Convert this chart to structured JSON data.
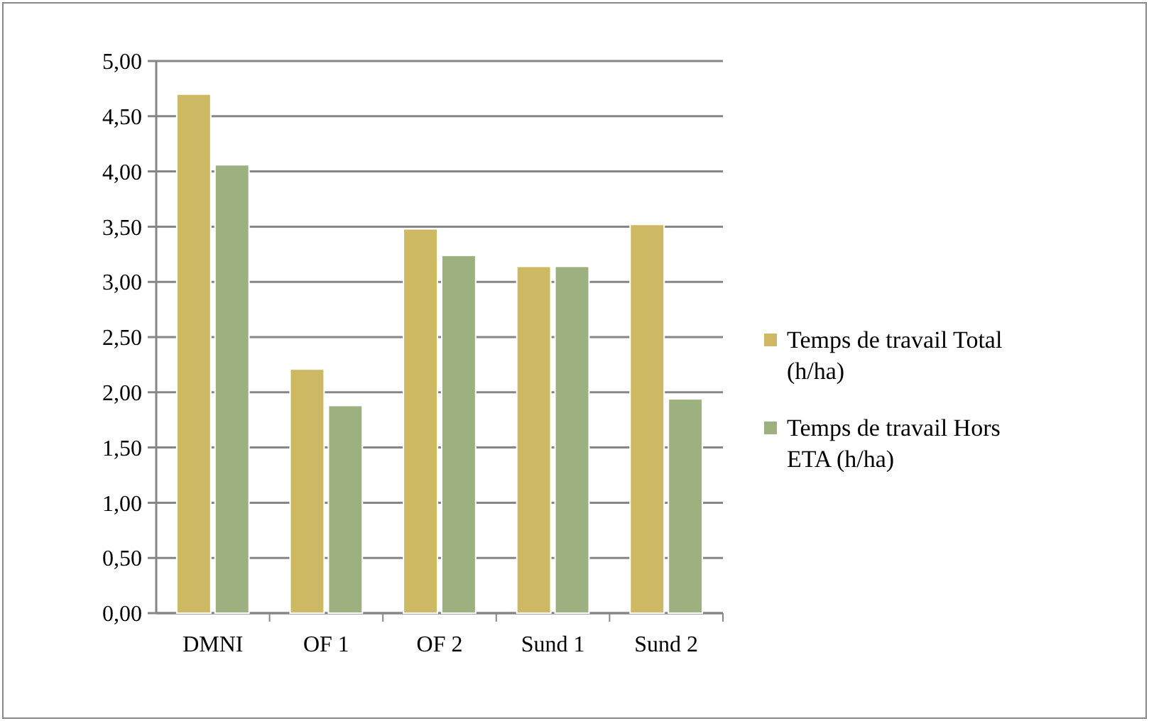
{
  "chart_data": {
    "type": "bar",
    "categories": [
      "DMNI",
      "OF 1",
      "OF 2",
      "Sund 1",
      "Sund 2"
    ],
    "series": [
      {
        "name": "Temps de travail Total (h/ha)",
        "color": "#cdb863",
        "values": [
          4.7,
          2.21,
          3.48,
          3.14,
          3.52
        ]
      },
      {
        "name": "Temps de travail Hors ETA (h/ha)",
        "color": "#9db080",
        "values": [
          4.06,
          1.88,
          3.24,
          3.14,
          1.94
        ]
      }
    ],
    "ylim": [
      0,
      5
    ],
    "yticks": [
      {
        "value": 0,
        "label": "0,00"
      },
      {
        "value": 0.5,
        "label": "0,50"
      },
      {
        "value": 1,
        "label": "1,00"
      },
      {
        "value": 1.5,
        "label": "1,50"
      },
      {
        "value": 2,
        "label": "2,00"
      },
      {
        "value": 2.5,
        "label": "2,50"
      },
      {
        "value": 3,
        "label": "3,00"
      },
      {
        "value": 3.5,
        "label": "3,50"
      },
      {
        "value": 4,
        "label": "4,00"
      },
      {
        "value": 4.5,
        "label": "4,50"
      },
      {
        "value": 5,
        "label": "5,00"
      }
    ],
    "grid": "y",
    "legend": "right"
  }
}
